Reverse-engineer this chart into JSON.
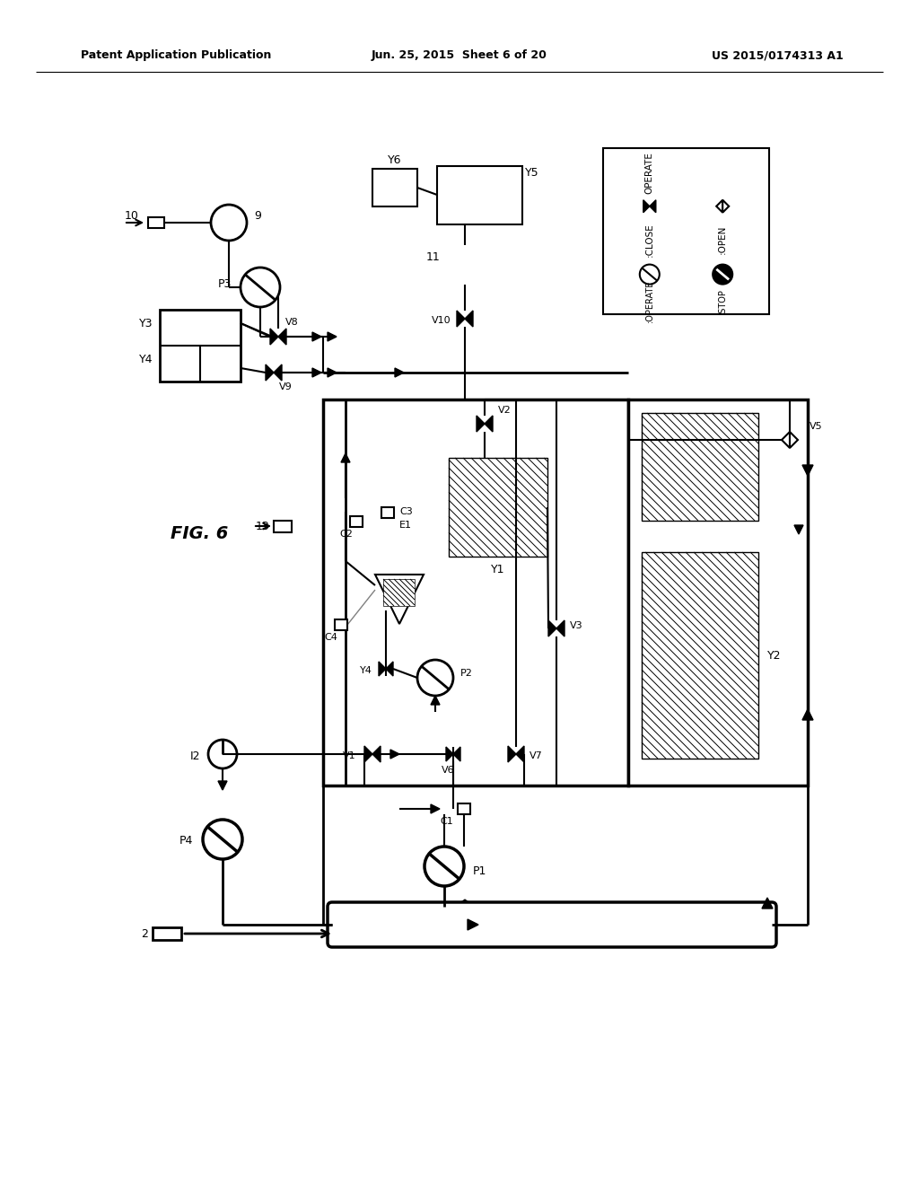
{
  "title_left": "Patent Application Publication",
  "title_mid": "Jun. 25, 2015  Sheet 6 of 20",
  "title_right": "US 2015/0174313 A1",
  "fig_label": "FIG. 6",
  "background": "#ffffff"
}
